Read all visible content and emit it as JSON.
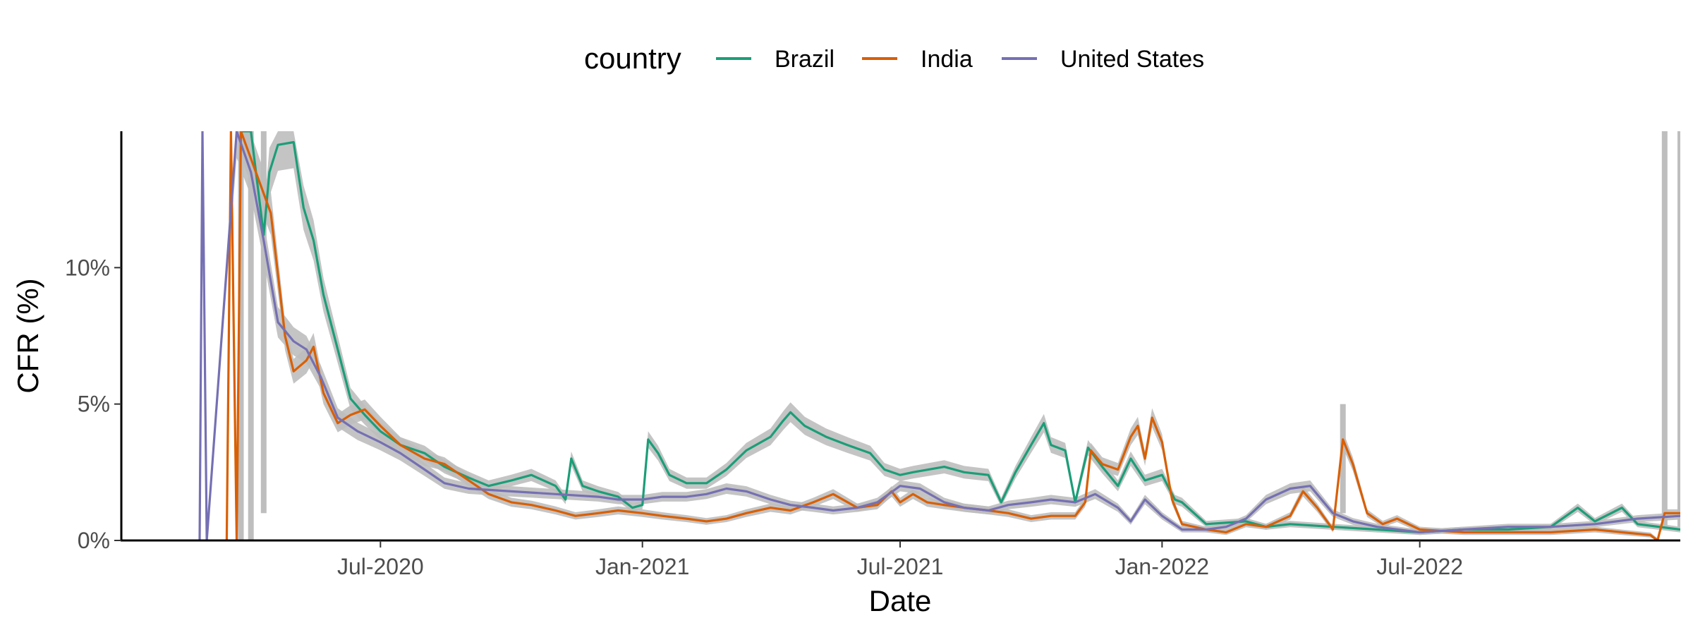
{
  "chart_data": {
    "type": "line",
    "xlabel": "Date",
    "ylabel": "CFR (%)",
    "x_tick_labels": [
      "Jul-2020",
      "Jan-2021",
      "Jul-2021",
      "Jan-2022",
      "Jul-2022"
    ],
    "x_ticks": [
      "2020-07-01",
      "2021-01-01",
      "2021-07-01",
      "2022-01-01",
      "2022-07-01"
    ],
    "xlim": [
      "2020-01-01",
      "2022-12-31"
    ],
    "y_tick_labels": [
      "0%",
      "5%",
      "10%"
    ],
    "y_ticks": [
      0,
      5,
      10
    ],
    "ylim": [
      0,
      15
    ],
    "grid": false,
    "legend": {
      "title": "country",
      "position": "top",
      "entries": [
        "Brazil",
        "India",
        "United States"
      ]
    },
    "colors": {
      "Brazil": "#1b9e77",
      "India": "#d95f02",
      "United States": "#7570b3",
      "ribbon": "#bebebe"
    },
    "series": [
      {
        "name": "Brazil",
        "color": "#1b9e77",
        "points": [
          [
            "2020-03-25",
            15
          ],
          [
            "2020-04-01",
            15
          ],
          [
            "2020-04-10",
            11.2
          ],
          [
            "2020-04-14",
            13.5
          ],
          [
            "2020-04-20",
            14.5
          ],
          [
            "2020-05-01",
            14.6
          ],
          [
            "2020-05-08",
            12.2
          ],
          [
            "2020-05-15",
            11.0
          ],
          [
            "2020-05-22",
            9.0
          ],
          [
            "2020-06-01",
            7.0
          ],
          [
            "2020-06-10",
            5.2
          ],
          [
            "2020-06-20",
            4.6
          ],
          [
            "2020-07-01",
            4.0
          ],
          [
            "2020-07-15",
            3.5
          ],
          [
            "2020-08-01",
            3.2
          ],
          [
            "2020-08-15",
            2.7
          ],
          [
            "2020-09-01",
            2.3
          ],
          [
            "2020-09-15",
            2.0
          ],
          [
            "2020-10-01",
            2.2
          ],
          [
            "2020-10-15",
            2.4
          ],
          [
            "2020-11-01",
            2.0
          ],
          [
            "2020-11-08",
            1.5
          ],
          [
            "2020-11-12",
            3.0
          ],
          [
            "2020-11-20",
            2.0
          ],
          [
            "2020-12-01",
            1.8
          ],
          [
            "2020-12-15",
            1.6
          ],
          [
            "2020-12-25",
            1.2
          ],
          [
            "2021-01-01",
            1.3
          ],
          [
            "2021-01-05",
            3.7
          ],
          [
            "2021-01-12",
            3.2
          ],
          [
            "2021-01-20",
            2.4
          ],
          [
            "2021-02-01",
            2.1
          ],
          [
            "2021-02-15",
            2.1
          ],
          [
            "2021-03-01",
            2.6
          ],
          [
            "2021-03-15",
            3.3
          ],
          [
            "2021-04-01",
            3.8
          ],
          [
            "2021-04-10",
            4.4
          ],
          [
            "2021-04-15",
            4.7
          ],
          [
            "2021-04-25",
            4.2
          ],
          [
            "2021-05-10",
            3.8
          ],
          [
            "2021-05-25",
            3.5
          ],
          [
            "2021-06-10",
            3.2
          ],
          [
            "2021-06-20",
            2.6
          ],
          [
            "2021-07-01",
            2.4
          ],
          [
            "2021-07-10",
            2.5
          ],
          [
            "2021-08-01",
            2.7
          ],
          [
            "2021-08-15",
            2.5
          ],
          [
            "2021-09-01",
            2.4
          ],
          [
            "2021-09-10",
            1.4
          ],
          [
            "2021-09-20",
            2.5
          ],
          [
            "2021-10-01",
            3.5
          ],
          [
            "2021-10-10",
            4.3
          ],
          [
            "2021-10-15",
            3.5
          ],
          [
            "2021-10-25",
            3.3
          ],
          [
            "2021-11-01",
            1.4
          ],
          [
            "2021-11-10",
            3.4
          ],
          [
            "2021-11-20",
            2.7
          ],
          [
            "2021-12-01",
            2.0
          ],
          [
            "2021-12-10",
            3.0
          ],
          [
            "2021-12-20",
            2.2
          ],
          [
            "2022-01-01",
            2.4
          ],
          [
            "2022-01-10",
            1.5
          ],
          [
            "2022-01-15",
            1.4
          ],
          [
            "2022-02-01",
            0.6
          ],
          [
            "2022-03-01",
            0.7
          ],
          [
            "2022-03-15",
            0.5
          ],
          [
            "2022-04-01",
            0.6
          ],
          [
            "2022-05-01",
            0.5
          ],
          [
            "2022-06-01",
            0.4
          ],
          [
            "2022-07-01",
            0.3
          ],
          [
            "2022-08-01",
            0.4
          ],
          [
            "2022-09-01",
            0.4
          ],
          [
            "2022-10-01",
            0.5
          ],
          [
            "2022-10-20",
            1.2
          ],
          [
            "2022-11-01",
            0.7
          ],
          [
            "2022-11-20",
            1.2
          ],
          [
            "2022-12-01",
            0.6
          ],
          [
            "2022-12-31",
            0.4
          ]
        ]
      },
      {
        "name": "India",
        "color": "#d95f02",
        "points": [
          [
            "2020-03-15",
            0
          ],
          [
            "2020-03-18",
            15
          ],
          [
            "2020-03-22",
            0
          ],
          [
            "2020-03-25",
            15
          ],
          [
            "2020-04-01",
            14.0
          ],
          [
            "2020-04-15",
            12.0
          ],
          [
            "2020-04-25",
            7.5
          ],
          [
            "2020-05-01",
            6.2
          ],
          [
            "2020-05-10",
            6.6
          ],
          [
            "2020-05-15",
            7.1
          ],
          [
            "2020-05-22",
            5.4
          ],
          [
            "2020-06-01",
            4.3
          ],
          [
            "2020-06-10",
            4.6
          ],
          [
            "2020-06-20",
            4.8
          ],
          [
            "2020-07-01",
            4.2
          ],
          [
            "2020-07-15",
            3.5
          ],
          [
            "2020-08-01",
            3.0
          ],
          [
            "2020-08-15",
            2.8
          ],
          [
            "2020-09-01",
            2.2
          ],
          [
            "2020-09-15",
            1.7
          ],
          [
            "2020-10-01",
            1.4
          ],
          [
            "2020-10-15",
            1.3
          ],
          [
            "2020-11-01",
            1.1
          ],
          [
            "2020-11-15",
            0.9
          ],
          [
            "2020-12-01",
            1.0
          ],
          [
            "2020-12-15",
            1.1
          ],
          [
            "2021-01-01",
            1.0
          ],
          [
            "2021-01-15",
            0.9
          ],
          [
            "2021-02-01",
            0.8
          ],
          [
            "2021-02-15",
            0.7
          ],
          [
            "2021-03-01",
            0.8
          ],
          [
            "2021-03-15",
            1.0
          ],
          [
            "2021-04-01",
            1.2
          ],
          [
            "2021-04-15",
            1.1
          ],
          [
            "2021-05-01",
            1.4
          ],
          [
            "2021-05-15",
            1.7
          ],
          [
            "2021-06-01",
            1.2
          ],
          [
            "2021-06-15",
            1.3
          ],
          [
            "2021-06-25",
            1.8
          ],
          [
            "2021-07-01",
            1.4
          ],
          [
            "2021-07-10",
            1.7
          ],
          [
            "2021-07-20",
            1.4
          ],
          [
            "2021-08-01",
            1.3
          ],
          [
            "2021-08-15",
            1.2
          ],
          [
            "2021-09-01",
            1.1
          ],
          [
            "2021-09-15",
            1.0
          ],
          [
            "2021-10-01",
            0.8
          ],
          [
            "2021-10-15",
            0.9
          ],
          [
            "2021-11-01",
            0.9
          ],
          [
            "2021-11-08",
            1.4
          ],
          [
            "2021-11-12",
            3.3
          ],
          [
            "2021-11-20",
            2.8
          ],
          [
            "2021-12-01",
            2.6
          ],
          [
            "2021-12-10",
            3.8
          ],
          [
            "2021-12-15",
            4.2
          ],
          [
            "2021-12-20",
            3.0
          ],
          [
            "2021-12-25",
            4.5
          ],
          [
            "2022-01-01",
            3.6
          ],
          [
            "2022-01-08",
            1.5
          ],
          [
            "2022-01-15",
            0.6
          ],
          [
            "2022-02-01",
            0.4
          ],
          [
            "2022-02-15",
            0.3
          ],
          [
            "2022-03-01",
            0.6
          ],
          [
            "2022-03-15",
            0.5
          ],
          [
            "2022-04-01",
            0.9
          ],
          [
            "2022-04-10",
            1.8
          ],
          [
            "2022-04-20",
            1.2
          ],
          [
            "2022-05-01",
            0.4
          ],
          [
            "2022-05-08",
            3.7
          ],
          [
            "2022-05-15",
            2.8
          ],
          [
            "2022-05-25",
            1.0
          ],
          [
            "2022-06-05",
            0.6
          ],
          [
            "2022-06-15",
            0.8
          ],
          [
            "2022-07-01",
            0.4
          ],
          [
            "2022-08-01",
            0.3
          ],
          [
            "2022-09-01",
            0.3
          ],
          [
            "2022-10-01",
            0.3
          ],
          [
            "2022-11-01",
            0.4
          ],
          [
            "2022-11-20",
            0.3
          ],
          [
            "2022-12-10",
            0.2
          ],
          [
            "2022-12-15",
            0.0
          ],
          [
            "2022-12-20",
            1.0
          ],
          [
            "2022-12-31",
            1.0
          ]
        ]
      },
      {
        "name": "United States",
        "color": "#7570b3",
        "points": [
          [
            "2020-02-25",
            0
          ],
          [
            "2020-02-27",
            15
          ],
          [
            "2020-03-01",
            0
          ],
          [
            "2020-03-22",
            15
          ],
          [
            "2020-04-01",
            13.5
          ],
          [
            "2020-04-10",
            11.0
          ],
          [
            "2020-04-20",
            8.0
          ],
          [
            "2020-05-01",
            7.3
          ],
          [
            "2020-05-10",
            7.0
          ],
          [
            "2020-05-20",
            6.0
          ],
          [
            "2020-06-01",
            4.5
          ],
          [
            "2020-06-15",
            4.0
          ],
          [
            "2020-07-01",
            3.6
          ],
          [
            "2020-07-15",
            3.2
          ],
          [
            "2020-08-01",
            2.6
          ],
          [
            "2020-08-15",
            2.1
          ],
          [
            "2020-09-01",
            1.9
          ],
          [
            "2020-10-01",
            1.8
          ],
          [
            "2020-11-01",
            1.7
          ],
          [
            "2020-12-01",
            1.6
          ],
          [
            "2020-12-15",
            1.5
          ],
          [
            "2021-01-01",
            1.5
          ],
          [
            "2021-01-15",
            1.6
          ],
          [
            "2021-02-01",
            1.6
          ],
          [
            "2021-02-15",
            1.7
          ],
          [
            "2021-03-01",
            1.9
          ],
          [
            "2021-03-15",
            1.8
          ],
          [
            "2021-04-01",
            1.5
          ],
          [
            "2021-04-15",
            1.3
          ],
          [
            "2021-05-01",
            1.2
          ],
          [
            "2021-05-15",
            1.1
          ],
          [
            "2021-06-01",
            1.2
          ],
          [
            "2021-06-15",
            1.4
          ],
          [
            "2021-07-01",
            2.0
          ],
          [
            "2021-07-15",
            1.9
          ],
          [
            "2021-08-01",
            1.4
          ],
          [
            "2021-08-15",
            1.2
          ],
          [
            "2021-09-01",
            1.1
          ],
          [
            "2021-09-15",
            1.3
          ],
          [
            "2021-10-01",
            1.4
          ],
          [
            "2021-10-15",
            1.5
          ],
          [
            "2021-11-01",
            1.4
          ],
          [
            "2021-11-15",
            1.7
          ],
          [
            "2021-12-01",
            1.2
          ],
          [
            "2021-12-10",
            0.7
          ],
          [
            "2021-12-20",
            1.5
          ],
          [
            "2022-01-01",
            0.9
          ],
          [
            "2022-01-15",
            0.4
          ],
          [
            "2022-02-01",
            0.4
          ],
          [
            "2022-02-15",
            0.5
          ],
          [
            "2022-03-01",
            0.8
          ],
          [
            "2022-03-15",
            1.5
          ],
          [
            "2022-04-01",
            1.9
          ],
          [
            "2022-04-15",
            2.0
          ],
          [
            "2022-05-01",
            1.0
          ],
          [
            "2022-05-15",
            0.7
          ],
          [
            "2022-06-01",
            0.5
          ],
          [
            "2022-07-01",
            0.3
          ],
          [
            "2022-08-01",
            0.4
          ],
          [
            "2022-09-01",
            0.5
          ],
          [
            "2022-10-01",
            0.5
          ],
          [
            "2022-11-01",
            0.6
          ],
          [
            "2022-12-01",
            0.8
          ],
          [
            "2022-12-31",
            0.9
          ]
        ]
      }
    ],
    "ribbon_spikes": [
      {
        "date": "2020-03-25",
        "low": 0,
        "high": 15
      },
      {
        "date": "2020-04-01",
        "low": 0,
        "high": 15
      },
      {
        "date": "2020-04-10",
        "low": 1.0,
        "high": 15
      },
      {
        "date": "2022-05-08",
        "low": 1.0,
        "high": 5.0
      },
      {
        "date": "2022-12-20",
        "low": 0.5,
        "high": 15
      },
      {
        "date": "2022-12-31",
        "low": 0.5,
        "high": 15
      }
    ]
  }
}
